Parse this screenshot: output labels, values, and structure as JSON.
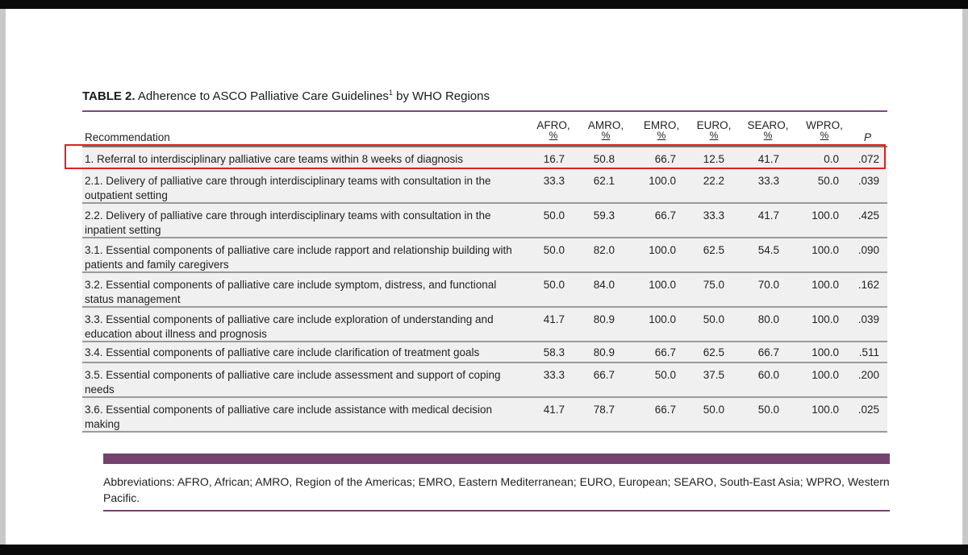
{
  "table": {
    "label": "TABLE 2.",
    "title": "Adherence to ASCO Palliative Care Guidelines",
    "superscript": "1",
    "title_suffix": "by WHO Regions",
    "columns": {
      "recommendation": "Recommendation",
      "regions": [
        {
          "name": "AFRO,",
          "unit": "%"
        },
        {
          "name": "AMRO,",
          "unit": "%"
        },
        {
          "name": "EMRO,",
          "unit": "%"
        },
        {
          "name": "EURO,",
          "unit": "%"
        },
        {
          "name": "SEARO,",
          "unit": "%"
        },
        {
          "name": "WPRO,",
          "unit": "%"
        }
      ],
      "p": "P"
    },
    "rows": [
      {
        "text": "1. Referral to interdisciplinary palliative care teams within 8 weeks of diagnosis",
        "values": [
          "16.7",
          "50.8",
          "66.7",
          "12.5",
          "41.7",
          "0.0",
          ".072"
        ]
      },
      {
        "text": "2.1. Delivery of palliative care through interdisciplinary teams with consultation in the outpatient setting",
        "values": [
          "33.3",
          "62.1",
          "100.0",
          "22.2",
          "33.3",
          "50.0",
          ".039"
        ]
      },
      {
        "text": "2.2. Delivery of palliative care through interdisciplinary teams with consultation in the inpatient setting",
        "values": [
          "50.0",
          "59.3",
          "66.7",
          "33.3",
          "41.7",
          "100.0",
          ".425"
        ]
      },
      {
        "text": "3.1. Essential components of palliative care include rapport and relationship building with patients and family caregivers",
        "values": [
          "50.0",
          "82.0",
          "100.0",
          "62.5",
          "54.5",
          "100.0",
          ".090"
        ]
      },
      {
        "text": "3.2. Essential components of palliative care include symptom, distress, and functional status management",
        "values": [
          "50.0",
          "84.0",
          "100.0",
          "75.0",
          "70.0",
          "100.0",
          ".162"
        ]
      },
      {
        "text": "3.3. Essential components of palliative care include exploration of understanding and education about illness and prognosis",
        "values": [
          "41.7",
          "80.9",
          "100.0",
          "50.0",
          "80.0",
          "100.0",
          ".039"
        ]
      },
      {
        "text": "3.4. Essential components of palliative care include clarification of treatment goals",
        "values": [
          "58.3",
          "80.9",
          "66.7",
          "62.5",
          "66.7",
          "100.0",
          ".511"
        ]
      },
      {
        "text": "3.5. Essential components of palliative care include assessment and support of coping needs",
        "values": [
          "33.3",
          "66.7",
          "50.0",
          "37.5",
          "60.0",
          "100.0",
          ".200"
        ]
      },
      {
        "text": "3.6. Essential components of palliative care include assistance with medical decision making",
        "values": [
          "41.7",
          "78.7",
          "66.7",
          "50.0",
          "50.0",
          "100.0",
          ".025"
        ]
      }
    ],
    "highlighted_row": 0
  },
  "footnote": {
    "text": "Abbreviations: AFRO, African; AMRO, Region of the Americas; EMRO, Eastern Mediterranean; EURO, European; SEARO, South-East Asia; WPRO, Western Pacific."
  },
  "colors": {
    "accent": "#74426f",
    "highlight": "#dd2222",
    "row_bg": "#f0f0f0"
  }
}
